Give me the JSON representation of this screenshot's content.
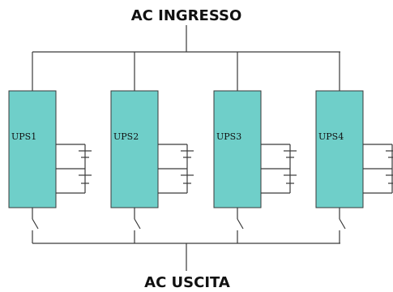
{
  "diagram": {
    "input_label": "AC INGRESSO",
    "output_label": "AC USCITA",
    "ups_units": [
      {
        "label": "UPS1"
      },
      {
        "label": "UPS2"
      },
      {
        "label": "UPS3"
      },
      {
        "label": "UPS4"
      }
    ],
    "colors": {
      "ups_fill": "#6fcfc9",
      "line": "#3a3a3a"
    }
  }
}
